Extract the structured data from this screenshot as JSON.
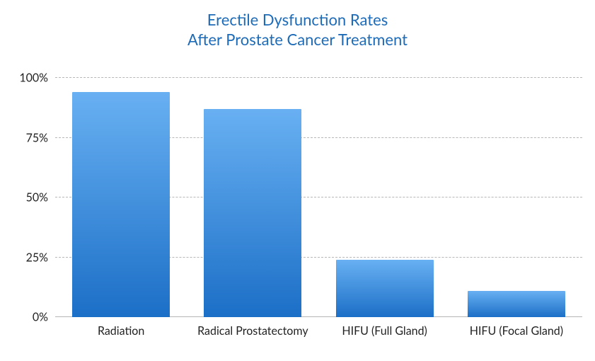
{
  "chart": {
    "type": "bar",
    "title_line1": "Erectile Dysfunction Rates",
    "title_line2": "After Prostate Cancer Treatment",
    "title_color": "#1e6bb8",
    "title_fontsize": 22,
    "categories": [
      "Radiation",
      "Radical Prostatectomy",
      "HIFU (Full Gland)",
      "HIFU (Focal Gland)"
    ],
    "values": [
      94,
      87,
      24,
      11
    ],
    "ylim": [
      0,
      100
    ],
    "ytick_step": 25,
    "yticks": [
      0,
      25,
      50,
      75,
      100
    ],
    "ytick_labels": [
      "0%",
      "25%",
      "50%",
      "75%",
      "100%"
    ],
    "bar_gradient_top": "#68b0f2",
    "bar_gradient_bottom": "#1c6fc7",
    "bar_width_pct": 74,
    "background_color": "#ffffff",
    "grid_color": "#b7b7b7",
    "axis_color": "#b5b5b5",
    "axis_text_color": "#222222",
    "tick_fontsize": 16,
    "xlabel_fontsize": 16
  }
}
